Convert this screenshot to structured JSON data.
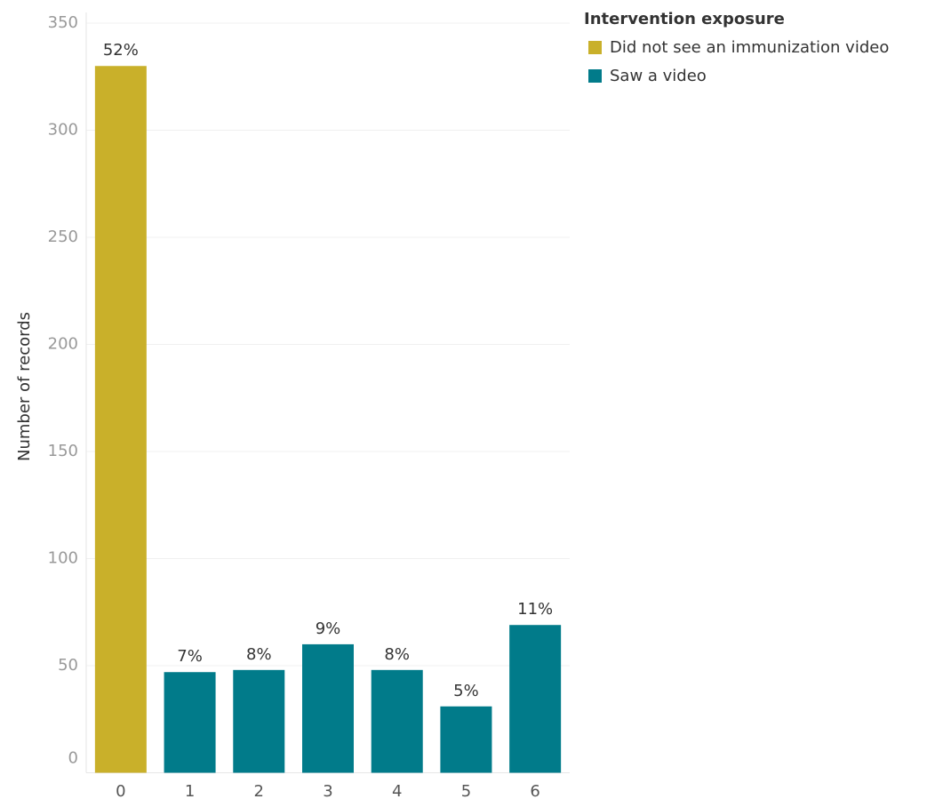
{
  "chart_data": {
    "type": "bar",
    "y_label": "Number of records",
    "legend_title": "Intervention exposure",
    "categories": [
      "0",
      "1",
      "2",
      "3",
      "4",
      "5",
      "6"
    ],
    "series": [
      {
        "name": "Did not see an immunization video",
        "color": "#c9b02a",
        "values": [
          330,
          null,
          null,
          null,
          null,
          null,
          null
        ],
        "share_labels": [
          "52%",
          null,
          null,
          null,
          null,
          null,
          null
        ]
      },
      {
        "name": "Saw a video",
        "color": "#017b8a",
        "values": [
          null,
          47,
          48,
          60,
          48,
          31,
          69
        ],
        "share_labels": [
          null,
          "7%",
          "8%",
          "9%",
          "8%",
          "5%",
          "11%"
        ]
      }
    ],
    "ylim": [
      0,
      355
    ],
    "yticks": [
      0,
      50,
      100,
      150,
      200,
      250,
      300,
      350
    ],
    "grid": true
  }
}
